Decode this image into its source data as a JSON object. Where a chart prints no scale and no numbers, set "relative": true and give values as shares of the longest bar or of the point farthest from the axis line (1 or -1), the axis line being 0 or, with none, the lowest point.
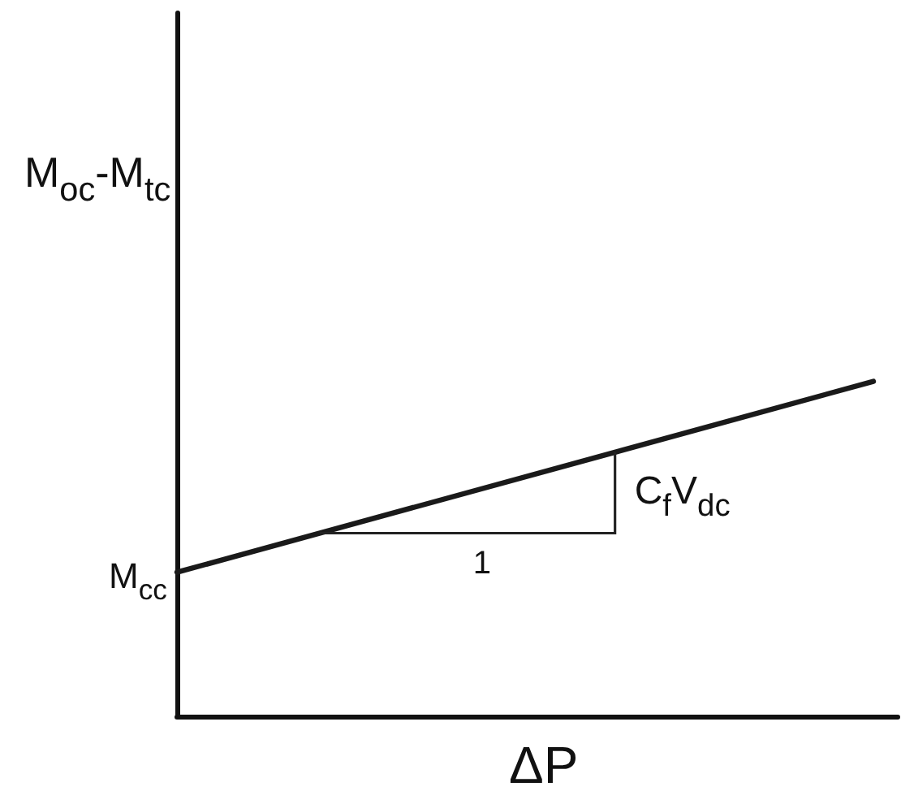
{
  "chart_data": {
    "type": "line",
    "xlabel": "ΔP",
    "ylabel": "M$_{oc}$-M$_{tc}$",
    "categories": [
      null,
      null
    ],
    "values": [
      0.43,
      1
    ],
    "color": "#1a1a1a",
    "relative": true,
    "marker": "none",
    "annotations": [
      "M$_{cc}$",
      "1",
      "C$_{f}$V$_{dc}$"
    ]
  }
}
